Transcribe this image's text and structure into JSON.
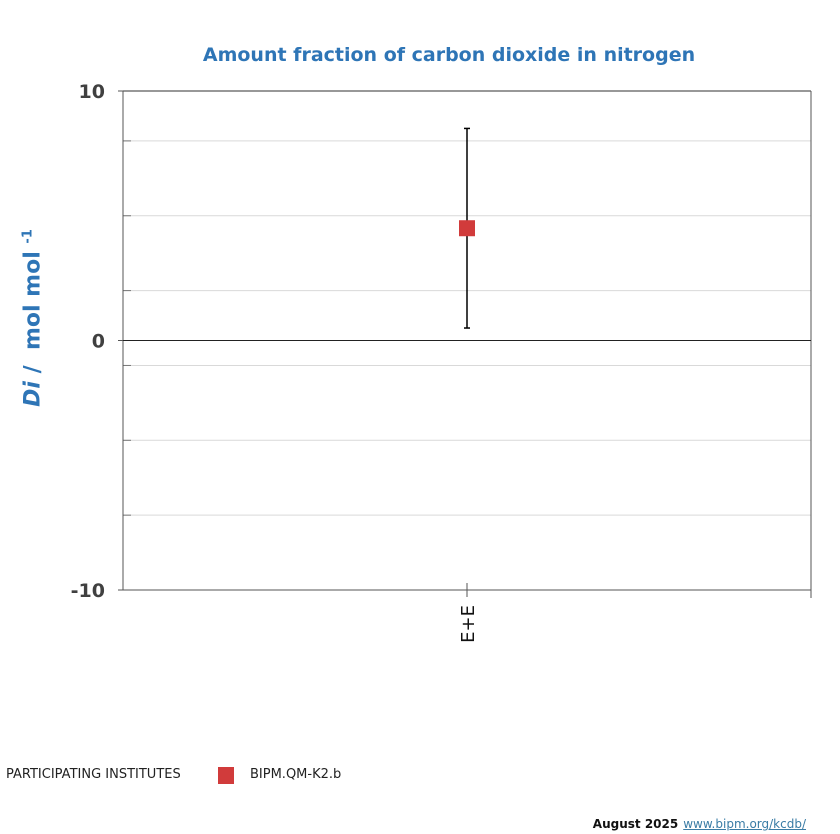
{
  "chart_data": {
    "type": "scatter",
    "title": "Amount fraction of carbon dioxide in nitrogen",
    "ylabel": {
      "italic": "Di",
      "rest": " /  mol mol ",
      "sup": "-1"
    },
    "xlabel": "",
    "ylim": [
      -10,
      10
    ],
    "yticks": [
      10,
      0,
      -10
    ],
    "ytick_labels": [
      "10",
      "0",
      "-10"
    ],
    "gridlines": [
      8,
      5,
      2,
      -1,
      -4,
      -7
    ],
    "grid": true,
    "categories": [
      "E+E"
    ],
    "points": [
      {
        "category": "E+E",
        "value": 4.5,
        "lower": 0.5,
        "upper": 8.5
      }
    ],
    "marker_color": "#d13b3b",
    "legend": {
      "title": "PARTICIPATING INSTITUTES",
      "entries": [
        {
          "name": "BIPM.QM-K2.b",
          "color": "#d13b3b"
        }
      ],
      "placement": "bottom-left"
    }
  },
  "footer": {
    "date": "August 2025",
    "link": "www.bipm.org/kcdb/"
  }
}
